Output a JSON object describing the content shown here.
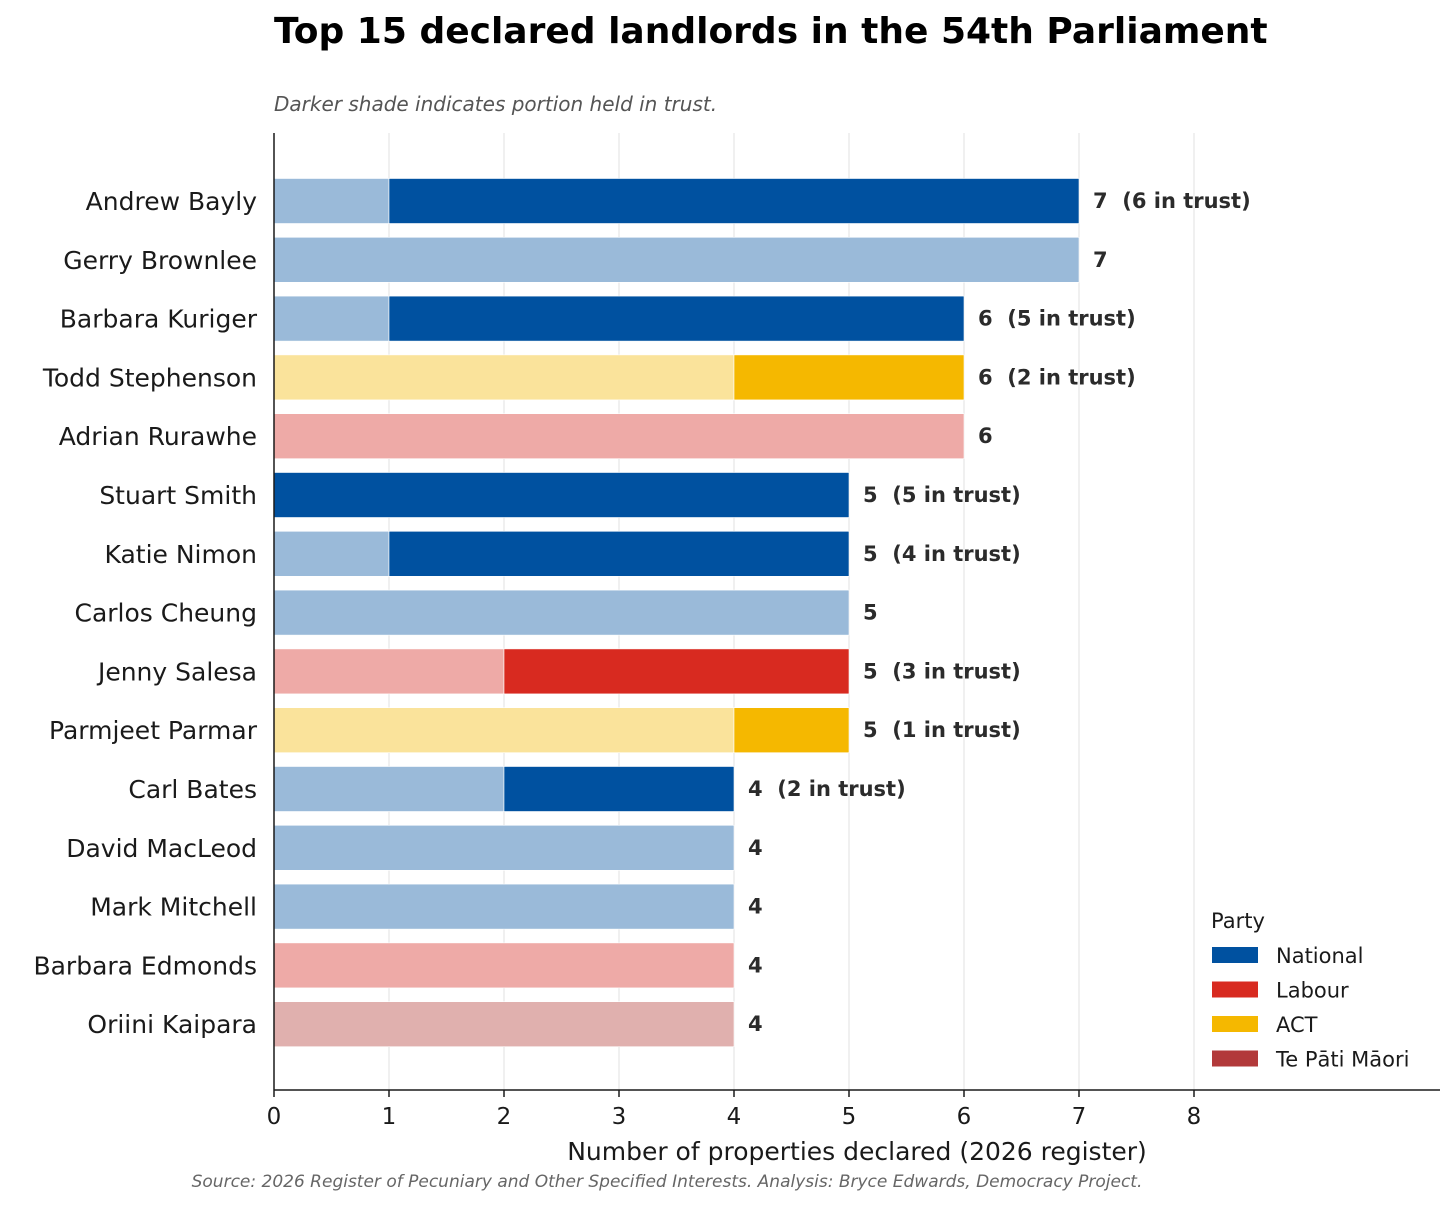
{
  "chart_data": {
    "type": "bar",
    "orientation": "horizontal",
    "stacked": true,
    "title": "Top 15 declared landlords in the 54th Parliament",
    "subtitle": "Darker shade indicates portion held in trust.",
    "xlabel": "Number of properties declared (2026 register)",
    "source": "Source: 2026 Register of Pecuniary and Other Specified Interests. Analysis: Bryce Edwards, Democracy Project.",
    "xlim": [
      0,
      10
    ],
    "xticks": [
      0,
      1,
      2,
      3,
      4,
      5,
      6,
      7,
      8
    ],
    "grid": "vertical",
    "legend_position": "lower-right",
    "legend": {
      "title": "Party",
      "entries": [
        {
          "name": "National",
          "color": "#0051a0"
        },
        {
          "name": "Labour",
          "color": "#d82a20"
        },
        {
          "name": "ACT",
          "color": "#f5b800"
        },
        {
          "name": "Te Pāti Māori",
          "color": "#b2393a"
        }
      ]
    },
    "party_colors": {
      "National": {
        "dark": "#0051a0",
        "light": "#9abad9"
      },
      "Labour": {
        "dark": "#d82a20",
        "light": "#eeaaa7"
      },
      "ACT": {
        "dark": "#f5b800",
        "light": "#fae39b"
      },
      "Te Pāti Māori": {
        "dark": "#b2393a",
        "light": "#e0b0ae"
      }
    },
    "rows": [
      {
        "name": "Andrew Bayly",
        "party": "National",
        "total": 7,
        "in_trust": 6,
        "label": "7  (6 in trust)"
      },
      {
        "name": "Gerry Brownlee",
        "party": "National",
        "total": 7,
        "in_trust": 0,
        "label": "7"
      },
      {
        "name": "Barbara Kuriger",
        "party": "National",
        "total": 6,
        "in_trust": 5,
        "label": "6  (5 in trust)"
      },
      {
        "name": "Todd Stephenson",
        "party": "ACT",
        "total": 6,
        "in_trust": 2,
        "label": "6  (2 in trust)"
      },
      {
        "name": "Adrian Rurawhe",
        "party": "Labour",
        "total": 6,
        "in_trust": 0,
        "label": "6"
      },
      {
        "name": "Stuart Smith",
        "party": "National",
        "total": 5,
        "in_trust": 5,
        "label": "5  (5 in trust)"
      },
      {
        "name": "Katie Nimon",
        "party": "National",
        "total": 5,
        "in_trust": 4,
        "label": "5  (4 in trust)"
      },
      {
        "name": "Carlos Cheung",
        "party": "National",
        "total": 5,
        "in_trust": 0,
        "label": "5"
      },
      {
        "name": "Jenny Salesa",
        "party": "Labour",
        "total": 5,
        "in_trust": 3,
        "label": "5  (3 in trust)"
      },
      {
        "name": "Parmjeet Parmar",
        "party": "ACT",
        "total": 5,
        "in_trust": 1,
        "label": "5  (1 in trust)"
      },
      {
        "name": "Carl Bates",
        "party": "National",
        "total": 4,
        "in_trust": 2,
        "label": "4  (2 in trust)"
      },
      {
        "name": "David MacLeod",
        "party": "National",
        "total": 4,
        "in_trust": 0,
        "label": "4"
      },
      {
        "name": "Mark Mitchell",
        "party": "National",
        "total": 4,
        "in_trust": 0,
        "label": "4"
      },
      {
        "name": "Barbara Edmonds",
        "party": "Labour",
        "total": 4,
        "in_trust": 0,
        "label": "4"
      },
      {
        "name": "Oriini Kaipara",
        "party": "Te Pāti Māori",
        "total": 4,
        "in_trust": 0,
        "label": "4"
      }
    ]
  }
}
